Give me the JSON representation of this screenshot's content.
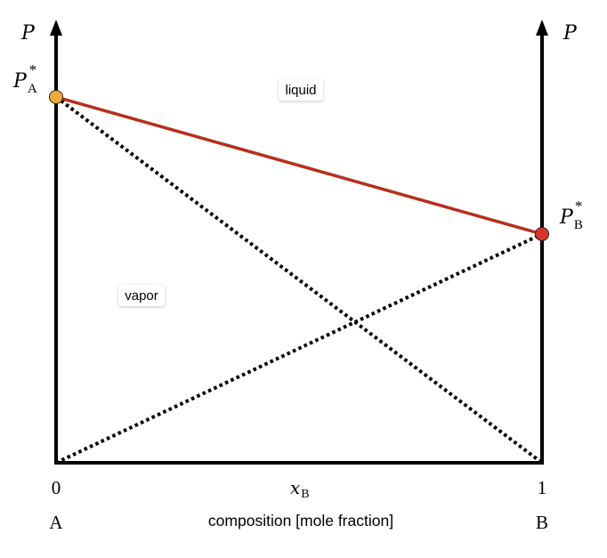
{
  "axes": {
    "left_axis_label": "P",
    "right_axis_label": "P",
    "x_tick_left": "0",
    "x_tick_right": "1",
    "x_variable": "x",
    "x_variable_sub": "B",
    "left_component": "A",
    "right_component": "B",
    "x_axis_title": "composition [mole fraction]"
  },
  "points": {
    "pa_star": {
      "symbol": "P",
      "sub": "A",
      "sup": "*",
      "color": "#f2a93b"
    },
    "pb_star": {
      "symbol": "P",
      "sub": "B",
      "sup": "*",
      "color": "#d9362b"
    }
  },
  "regions": {
    "liquid_label": "liquid",
    "vapor_label": "vapor"
  },
  "colors": {
    "total_pressure_line": "#b5301c",
    "partial_pressure_lines": "#000000",
    "axes": "#000000"
  },
  "chart_data": {
    "type": "line",
    "xlim": [
      0,
      1
    ],
    "x_axis_label": "composition [mole fraction]",
    "series": [
      {
        "x": [
          0,
          1
        ],
        "y": [
          1.0,
          0.625
        ],
        "style": "solid",
        "color": "#b5301c"
      },
      {
        "x": [
          0,
          1
        ],
        "y": [
          1.0,
          0.0
        ],
        "style": "dotted",
        "color": "#000000"
      },
      {
        "x": [
          0,
          1
        ],
        "y": [
          0.0,
          0.625
        ],
        "style": "dotted",
        "color": "#000000"
      }
    ]
  }
}
